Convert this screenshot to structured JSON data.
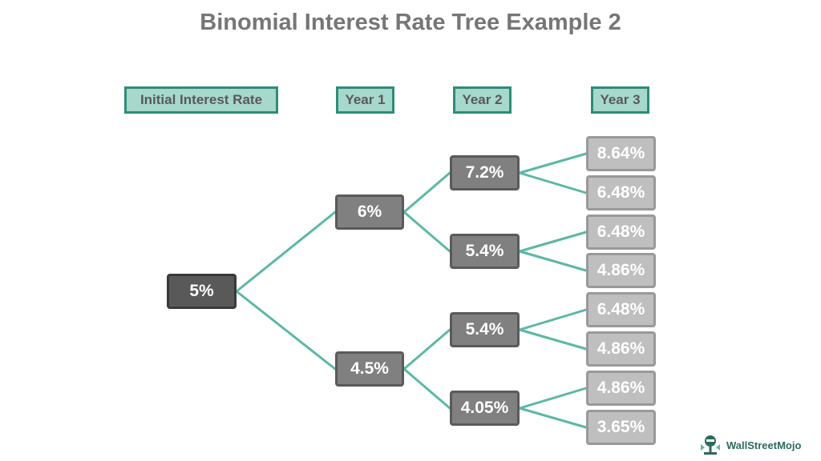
{
  "title": "Binomial Interest Rate Tree Example 2",
  "headers": {
    "initial": "Initial Interest Rate",
    "year1": "Year 1",
    "year2": "Year 2",
    "year3": "Year 3"
  },
  "tree": {
    "root": "5%",
    "year1": [
      "6%",
      "4.5%"
    ],
    "year2": [
      "7.2%",
      "5.4%",
      "5.4%",
      "4.05%"
    ],
    "year3": [
      "8.64%",
      "6.48%",
      "6.48%",
      "4.86%",
      "6.48%",
      "4.86%",
      "4.86%",
      "3.65%"
    ]
  },
  "colors": {
    "connector": "#5cb8a5",
    "header_fill": "#a6d8cc",
    "header_border": "#2f8c78"
  },
  "brand": {
    "name": "WallStreetMojo",
    "icon": "wallstreetmojo-logo-icon"
  }
}
